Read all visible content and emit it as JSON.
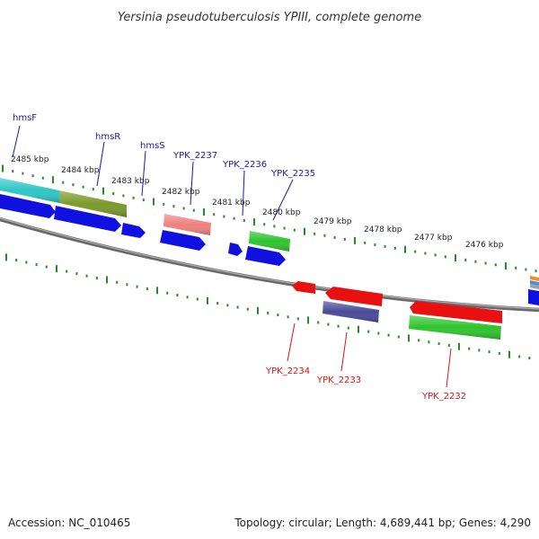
{
  "title": "Yersinia pseudotuberculosis YPIII, complete genome",
  "footer": {
    "accession": "Accession: NC_010465",
    "summary": "Topology: circular; Length: 4,689,441 bp; Genes: 4,290"
  },
  "colors": {
    "forward_label": "#1a1aa0",
    "reverse_label": "#e01010",
    "backbone": "#808080",
    "tick": "#2a8a2a",
    "cds_blue": "#1010e0",
    "cds_red": "#e81010",
    "cds_green": "#2ec42e",
    "cds_cyan": "#2ec6c6",
    "cds_olive": "#7a9a2a",
    "cds_pink": "#f08080",
    "cds_purple": "#4a4a9a"
  },
  "scale_labels": [
    "2485 kbp",
    "2484 kbp",
    "2483 kbp",
    "2482 kbp",
    "2481 kbp",
    "2480 kbp",
    "2479 kbp",
    "2478 kbp",
    "2477 kbp",
    "2476 kbp"
  ],
  "genes_forward": [
    "hmsF",
    "hmsR",
    "hmsS",
    "YPK_2237",
    "YPK_2236",
    "YPK_2235"
  ],
  "genes_reverse": [
    "YPK_2234",
    "YPK_2233",
    "YPK_2232"
  ]
}
